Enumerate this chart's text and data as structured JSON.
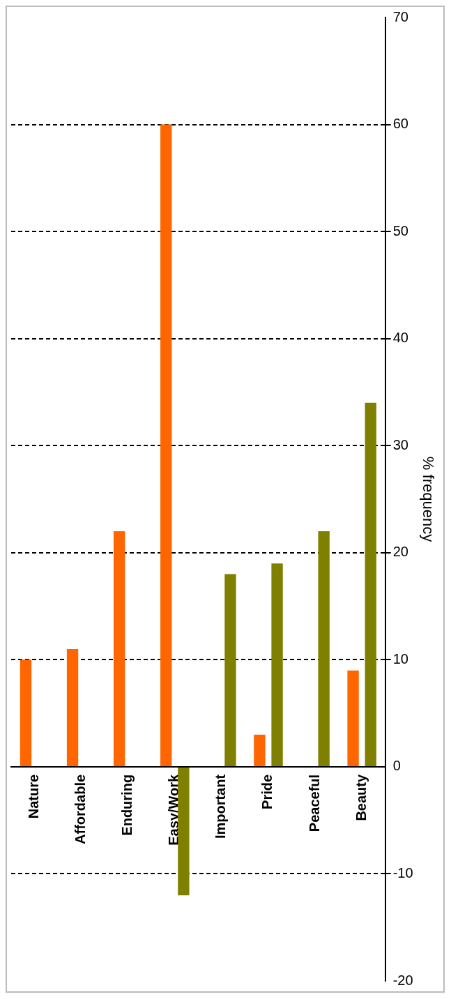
{
  "chart_data": {
    "type": "bar",
    "ylabel": "% frequency",
    "categories": [
      "Nature",
      "Affordable",
      "Enduring",
      "Easy/Work",
      "Important",
      "Pride",
      "Peaceful",
      "Beauty"
    ],
    "series": [
      {
        "color": "#ff6600",
        "values": [
          10,
          11,
          22,
          60,
          null,
          3,
          null,
          9
        ]
      },
      {
        "color": "#808000",
        "values": [
          null,
          null,
          null,
          -12,
          18,
          19,
          22,
          34
        ]
      }
    ],
    "ylim": [
      -20,
      70
    ],
    "yticks": [
      -20,
      -10,
      0,
      10,
      20,
      30,
      40,
      50,
      60,
      70
    ],
    "grid": "y",
    "line_style": "dashed",
    "legend": false
  }
}
